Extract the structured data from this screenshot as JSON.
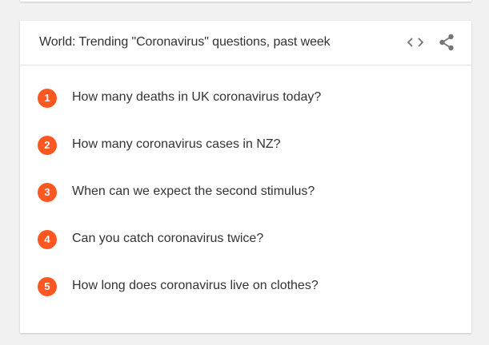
{
  "card": {
    "title": "World: Trending \"Coronavirus\" questions, past week",
    "embed_icon": "code-embed-icon",
    "share_icon": "share-icon"
  },
  "items": [
    {
      "rank": "1",
      "question": "How many deaths in UK coronavirus today?"
    },
    {
      "rank": "2",
      "question": "How many coronavirus cases in NZ?"
    },
    {
      "rank": "3",
      "question": "When can we expect the second stimulus?"
    },
    {
      "rank": "4",
      "question": "Can you catch coronavirus twice?"
    },
    {
      "rank": "5",
      "question": "How long does coronavirus live on clothes?"
    }
  ],
  "colors": {
    "accent": "#ff5722",
    "text": "#333333",
    "icon": "#757575",
    "background": "#f1f1f1",
    "card": "#ffffff"
  }
}
